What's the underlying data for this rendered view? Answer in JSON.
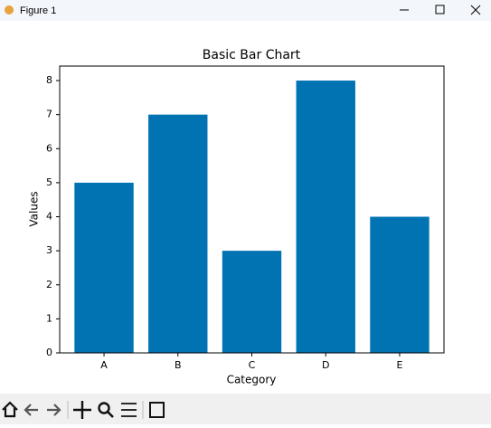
{
  "window": {
    "title": "Figure 1"
  },
  "chart_data": {
    "type": "bar",
    "title": "Basic Bar Chart",
    "x_label": "Category",
    "y_label": "Values",
    "categories": [
      "A",
      "B",
      "C",
      "D",
      "E"
    ],
    "values": [
      5,
      7,
      3,
      8,
      4
    ],
    "color": "#0173b2",
    "ylim": [
      0,
      8.4
    ],
    "yticks": [
      0,
      1,
      2,
      3,
      4,
      5,
      6,
      7,
      8
    ],
    "grid": false
  }
}
